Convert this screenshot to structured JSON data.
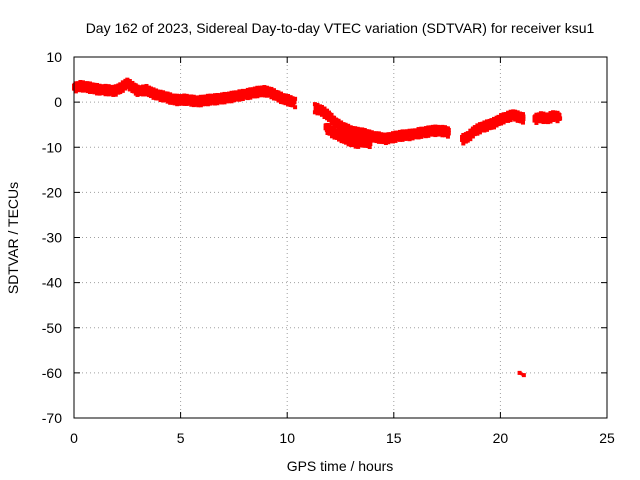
{
  "chart_data": {
    "type": "scatter",
    "title": "Day 162 of 2023, Sidereal Day-to-day VTEC variation (SDTVAR) for receiver ksu1",
    "xlabel": "GPS time / hours",
    "ylabel": "SDTVAR / TECUs",
    "xlim": [
      0,
      25
    ],
    "ylim": [
      -70,
      10
    ],
    "xticks": [
      0,
      5,
      10,
      15,
      20,
      25
    ],
    "yticks": [
      10,
      0,
      -10,
      -20,
      -30,
      -40,
      -50,
      -60,
      -70
    ],
    "grid": true,
    "series": [
      {
        "name": "ksu1",
        "color": "#ff0000",
        "trace": [
          [
            0.0,
            3.0
          ],
          [
            0.3,
            3.4
          ],
          [
            0.6,
            3.2
          ],
          [
            0.9,
            2.9
          ],
          [
            1.2,
            2.6
          ],
          [
            1.6,
            2.5
          ],
          [
            1.9,
            2.3
          ],
          [
            2.2,
            3.0
          ],
          [
            2.5,
            4.0
          ],
          [
            2.8,
            3.0
          ],
          [
            3.0,
            2.3
          ],
          [
            3.4,
            2.5
          ],
          [
            3.7,
            1.8
          ],
          [
            4.0,
            1.3
          ],
          [
            4.3,
            1.0
          ],
          [
            4.6,
            0.5
          ],
          [
            4.9,
            0.3
          ],
          [
            5.2,
            0.4
          ],
          [
            5.5,
            0.2
          ],
          [
            5.8,
            0.0
          ],
          [
            6.1,
            0.2
          ],
          [
            6.4,
            0.4
          ],
          [
            6.7,
            0.5
          ],
          [
            7.0,
            0.7
          ],
          [
            7.3,
            0.9
          ],
          [
            7.6,
            1.2
          ],
          [
            8.0,
            1.5
          ],
          [
            8.3,
            1.8
          ],
          [
            8.6,
            2.1
          ],
          [
            8.9,
            2.3
          ],
          [
            9.2,
            2.0
          ],
          [
            9.5,
            1.3
          ],
          [
            9.8,
            0.6
          ],
          [
            10.1,
            0.2
          ],
          [
            10.4,
            -0.4
          ],
          [
            11.3,
            -1.5
          ],
          [
            11.6,
            -2.0
          ],
          [
            11.9,
            -3.0
          ],
          [
            12.2,
            -4.5
          ],
          [
            12.5,
            -5.5
          ],
          [
            12.8,
            -6.2
          ],
          [
            13.1,
            -6.8
          ],
          [
            13.4,
            -7.0
          ],
          [
            13.7,
            -7.3
          ],
          [
            14.0,
            -7.8
          ],
          [
            14.3,
            -8.0
          ],
          [
            14.6,
            -8.3
          ],
          [
            14.9,
            -8.0
          ],
          [
            15.2,
            -7.7
          ],
          [
            15.5,
            -7.5
          ],
          [
            15.8,
            -7.4
          ],
          [
            16.2,
            -7.0
          ],
          [
            16.5,
            -6.8
          ],
          [
            16.8,
            -6.5
          ],
          [
            17.1,
            -6.5
          ],
          [
            17.4,
            -6.6
          ],
          [
            17.6,
            -7.0
          ],
          [
            18.2,
            -8.5
          ],
          [
            18.5,
            -7.8
          ],
          [
            18.8,
            -6.5
          ],
          [
            19.1,
            -5.8
          ],
          [
            19.4,
            -5.3
          ],
          [
            19.7,
            -4.8
          ],
          [
            20.0,
            -4.0
          ],
          [
            20.3,
            -3.5
          ],
          [
            20.6,
            -3.0
          ],
          [
            20.9,
            -3.5
          ],
          [
            21.1,
            -3.8
          ],
          [
            21.6,
            -4.0
          ],
          [
            21.9,
            -3.5
          ],
          [
            22.2,
            -3.8
          ],
          [
            22.5,
            -3.2
          ],
          [
            22.8,
            -3.6
          ]
        ],
        "lower_branch": [
          [
            11.8,
            -5.8
          ],
          [
            12.1,
            -6.8
          ],
          [
            12.4,
            -7.5
          ],
          [
            12.7,
            -8.2
          ],
          [
            13.0,
            -8.8
          ],
          [
            13.3,
            -9.2
          ],
          [
            13.6,
            -8.8
          ],
          [
            13.9,
            -9.3
          ]
        ],
        "outliers": [
          [
            21.1,
            -60.5
          ],
          [
            20.9,
            -60.0
          ]
        ]
      }
    ]
  }
}
